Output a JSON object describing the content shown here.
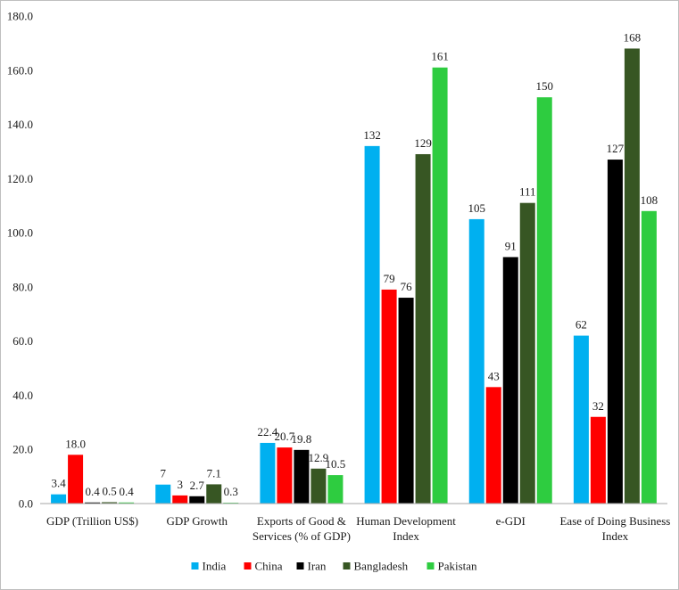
{
  "chart_data": {
    "type": "bar",
    "categories": [
      [
        "GDP (Trillion US$)"
      ],
      [
        "GDP Growth"
      ],
      [
        "Exports of Good &",
        "Services (% of GDP)"
      ],
      [
        "Human Development",
        "Index"
      ],
      [
        "e-GDI"
      ],
      [
        "Ease of Doing Business",
        "Index"
      ]
    ],
    "series": [
      {
        "name": "India",
        "color": "#00b0f0",
        "values": [
          3.4,
          7,
          22.4,
          132,
          105,
          62
        ],
        "labels": [
          "3.4",
          "7",
          "22.4",
          "132",
          "105",
          "62"
        ]
      },
      {
        "name": "China",
        "color": "#ff0000",
        "values": [
          18.0,
          3,
          20.7,
          79,
          43,
          32
        ],
        "labels": [
          "18.0",
          "3",
          "20.7",
          "79",
          "43",
          "32"
        ]
      },
      {
        "name": "Iran",
        "color": "#000000",
        "values": [
          0.4,
          2.7,
          19.8,
          76,
          91,
          127
        ],
        "labels": [
          "0.4",
          "2.7",
          "19.8",
          "76",
          "91",
          "127"
        ]
      },
      {
        "name": "Bangladesh",
        "color": "#375623",
        "values": [
          0.5,
          7.1,
          12.9,
          129,
          111,
          168
        ],
        "labels": [
          "0.5",
          "7.1",
          "12.9",
          "129",
          "111",
          "168"
        ]
      },
      {
        "name": "Pakistan",
        "color": "#2ecc40",
        "values": [
          0.4,
          0.3,
          10.5,
          161,
          150,
          108
        ],
        "labels": [
          "0.4",
          "0.3",
          "10.5",
          "161",
          "150",
          "108"
        ]
      }
    ],
    "yticks": [
      "0.0",
      "20.0",
      "40.0",
      "60.0",
      "80.0",
      "100.0",
      "120.0",
      "140.0",
      "160.0",
      "180.0"
    ],
    "ylim": [
      0,
      180
    ],
    "grid": false,
    "legend_position": "bottom"
  }
}
